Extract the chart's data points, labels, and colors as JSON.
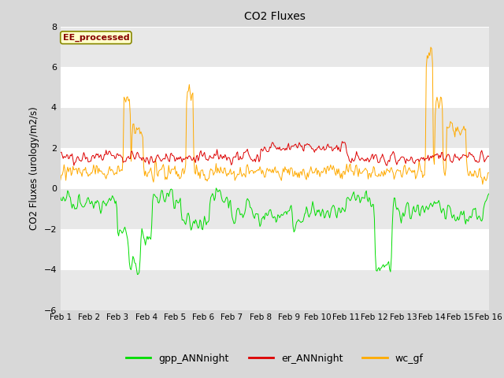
{
  "title": "CO2 Fluxes",
  "ylabel": "CO2 Fluxes (urology/m2/s)",
  "xlim_days": 15,
  "ylim": [
    -6,
    8
  ],
  "yticks": [
    -6,
    -4,
    -2,
    0,
    2,
    4,
    6,
    8
  ],
  "xtick_labels": [
    "Feb 1",
    "Feb 2",
    "Feb 3",
    "Feb 4",
    "Feb 5",
    "Feb 6",
    "Feb 7",
    "Feb 8",
    "Feb 9",
    "Feb 10",
    "Feb 11",
    "Feb 12",
    "Feb 13",
    "Feb 14",
    "Feb 15",
    "Feb 16"
  ],
  "fig_bg_color": "#d8d8d8",
  "plot_bg_color": "#ffffff",
  "band_color": "#e8e8e8",
  "annotation_text": "EE_processed",
  "annotation_bg": "#ffffcc",
  "annotation_border": "#888800",
  "annotation_text_color": "#880000",
  "line_gpp_color": "#00dd00",
  "line_er_color": "#dd0000",
  "line_wc_color": "#ffaa00",
  "line_width": 0.7,
  "legend_labels": [
    "gpp_ANNnight",
    "er_ANNnight",
    "wc_gf"
  ],
  "legend_colors": [
    "#00dd00",
    "#dd0000",
    "#ffaa00"
  ],
  "n_points": 480,
  "seed": 42
}
